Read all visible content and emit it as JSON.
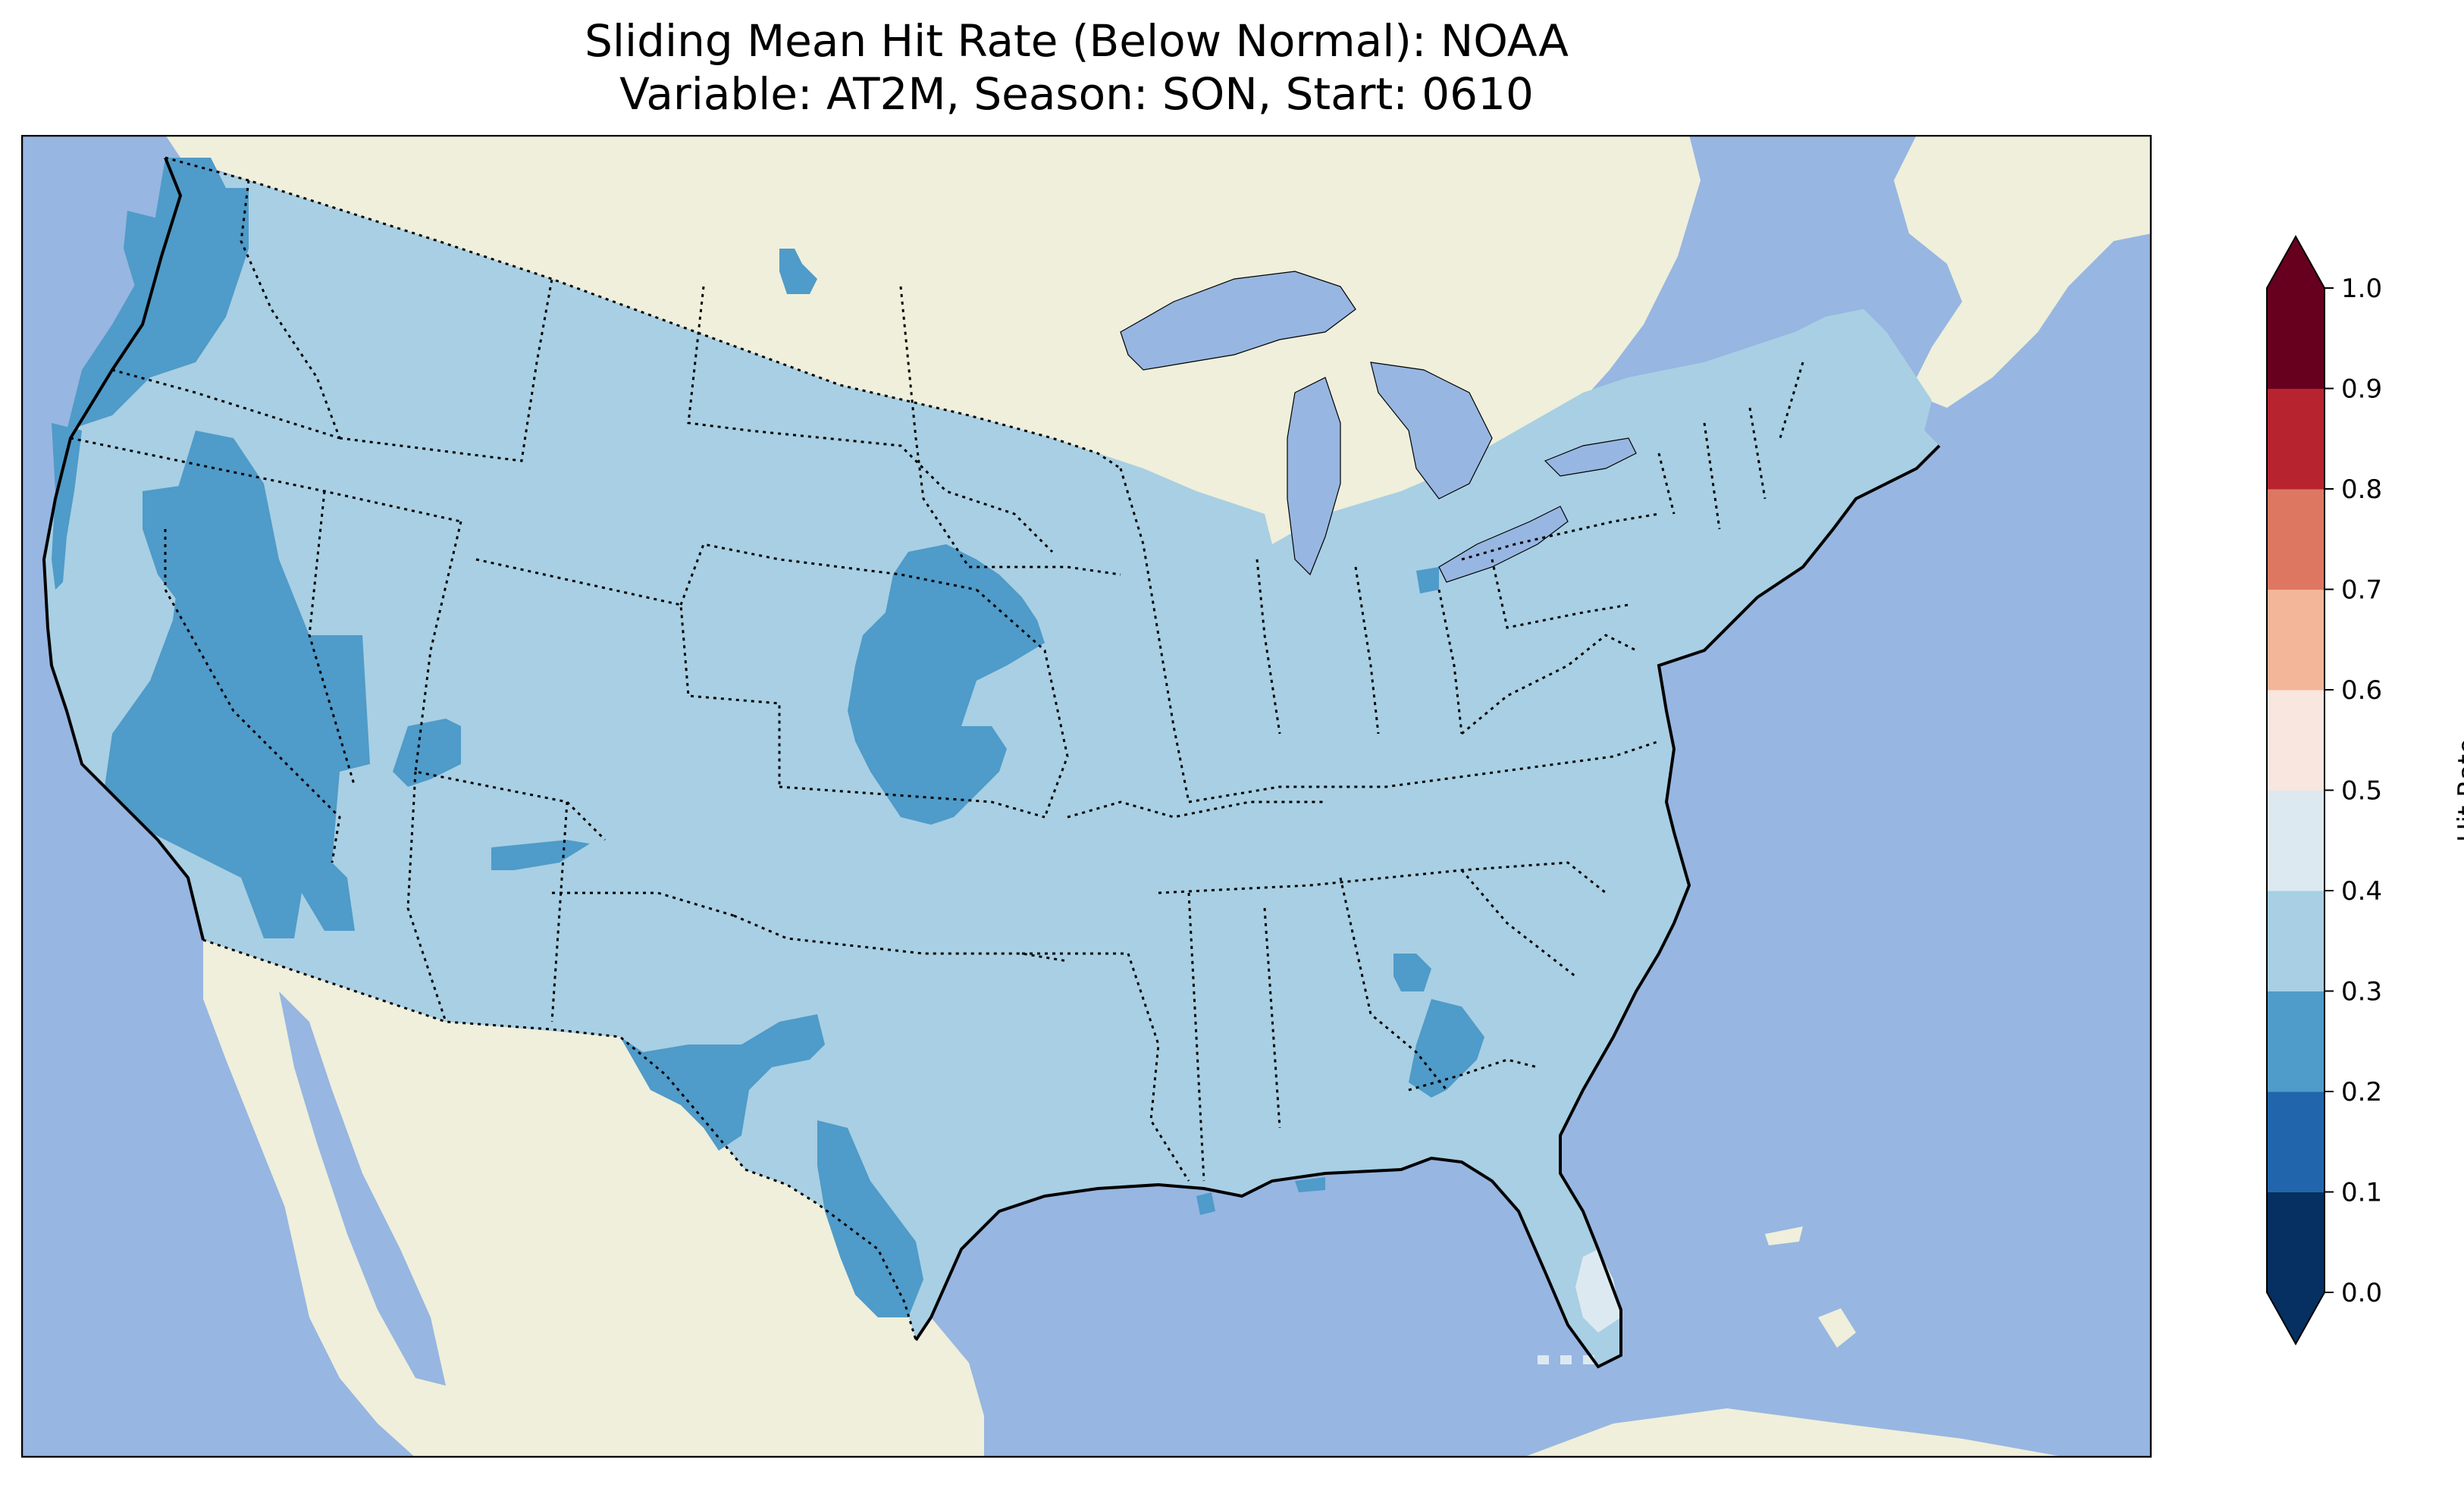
{
  "title": "Sliding Mean Hit Rate (Below Normal): NOAA",
  "subtitle": "Variable: AT2M, Season: SON, Start: 0610",
  "colors": {
    "ocean": "#97b6e1",
    "land": "#efefdb",
    "border": "#000000"
  },
  "colorbar": {
    "label": "Hit Rate",
    "ticks": [
      "0.0",
      "0.1",
      "0.2",
      "0.3",
      "0.4",
      "0.5",
      "0.6",
      "0.7",
      "0.8",
      "0.9",
      "1.0"
    ],
    "bins": [
      {
        "from": 0.0,
        "to": 0.1,
        "color": "#053061"
      },
      {
        "from": 0.1,
        "to": 0.2,
        "color": "#2166ac"
      },
      {
        "from": 0.2,
        "to": 0.3,
        "color": "#4f9bc9"
      },
      {
        "from": 0.3,
        "to": 0.4,
        "color": "#a8cfe3"
      },
      {
        "from": 0.4,
        "to": 0.5,
        "color": "#dde9f1"
      },
      {
        "from": 0.5,
        "to": 0.6,
        "color": "#f8e6df"
      },
      {
        "from": 0.6,
        "to": 0.7,
        "color": "#f4b698"
      },
      {
        "from": 0.7,
        "to": 0.8,
        "color": "#de7761"
      },
      {
        "from": 0.8,
        "to": 0.9,
        "color": "#b7242f"
      },
      {
        "from": 0.9,
        "to": 1.0,
        "color": "#67001f"
      }
    ],
    "extend": "both"
  },
  "map_data": {
    "region": "Contiguous United States",
    "predominant_hit_rate_bin": "0.3-0.4",
    "lower_hit_rate_bin": "0.2-0.3",
    "higher_hit_rate_bin": "0.4-0.5",
    "regions_0.2_0.3": [
      "Pacific Northwest coast",
      "Northern California and Nevada",
      "Southern California",
      "Utah (small patch)",
      "North Dakota (small patch)",
      "Kansas and Oklahoma",
      "New Mexico (small patch)",
      "West Texas",
      "South Texas",
      "Southern Alabama and Georgia",
      "Northwest Ohio (small patch)"
    ],
    "regions_0.4_0.5": [
      "South Florida"
    ]
  }
}
